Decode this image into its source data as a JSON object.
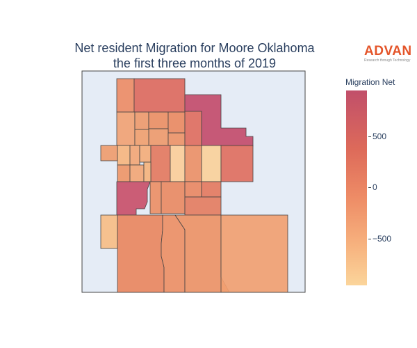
{
  "title": {
    "line1": "Net resident Migration for Moore Oklahoma",
    "line2": "the first three months of 2019"
  },
  "logo": {
    "brand": "ADVAN",
    "tagline": "Research through Technology"
  },
  "colorbar": {
    "title": "Migration Net",
    "ticks": [
      {
        "label": "500",
        "value": 500
      },
      {
        "label": "0",
        "value": 0
      },
      {
        "label": "−500",
        "value": -500
      }
    ],
    "colors": [
      "#c14f6a",
      "#dd6a5a",
      "#ee8c66",
      "#f7b37f",
      "#fbd59b"
    ]
  },
  "colors": {
    "map_background": "#e5ecf6",
    "region_border": "#444444"
  }
}
